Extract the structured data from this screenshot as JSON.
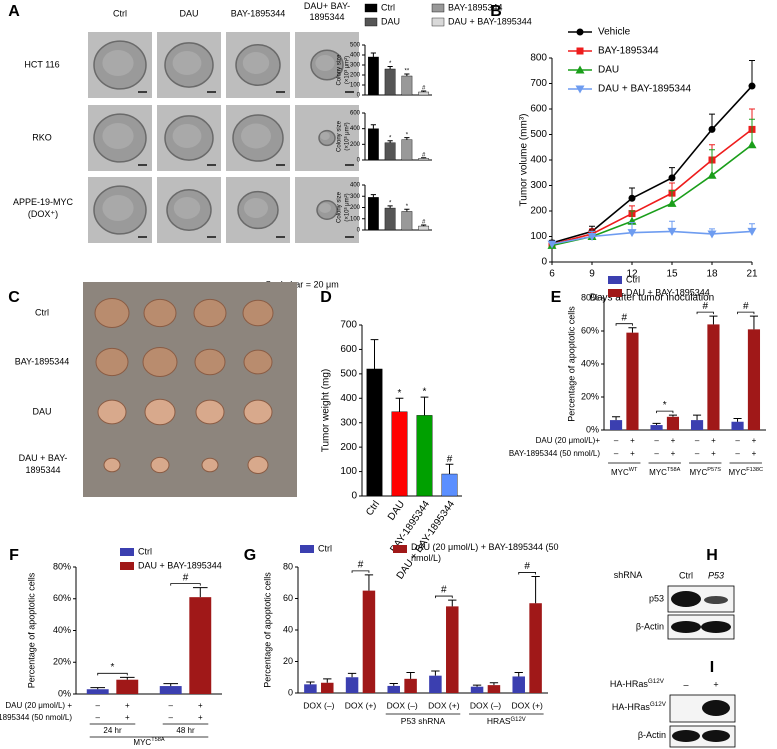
{
  "figure": {
    "panel_labels": [
      "A",
      "B",
      "C",
      "D",
      "E",
      "F",
      "G",
      "H",
      "I"
    ],
    "a": {
      "column_headers": [
        "Ctrl",
        "DAU",
        "BAY-1895344",
        "DAU+ BAY-1895344"
      ],
      "row_labels": [
        "HCT 116",
        "RKO",
        "APPE-19-MYC (DOX⁺)"
      ],
      "scale_bar": "Scale bar = 20 μm"
    },
    "c": {
      "row_labels": [
        "Ctrl",
        "BAY-1895344",
        "DAU",
        "DAU + BAY-1895344"
      ]
    },
    "h": {
      "header": "shRNA",
      "lanes": [
        "Ctrl",
        "P53"
      ],
      "rows": [
        "p53",
        "β-Actin"
      ]
    },
    "i": {
      "header": "HA-HRas",
      "header_sup": "G12V",
      "lanes": [
        "–",
        "+"
      ],
      "rows": [
        "HA-HRas",
        "β-Actin"
      ],
      "row_sups": [
        "G12V",
        null
      ]
    }
  },
  "chart_data": [
    {
      "type": "bar",
      "categories": [
        "Ctrl",
        "DAU",
        "BAY-1895344",
        "DAU + BAY-1895344"
      ],
      "colors": [
        "#000000",
        "#555555",
        "#999999",
        "#d9d9d9"
      ],
      "values": [
        380,
        260,
        190,
        30
      ],
      "errors": [
        40,
        25,
        20,
        10
      ],
      "annotations": [
        null,
        "*",
        "**",
        "#"
      ],
      "y_label": "Colony size",
      "y_unit": "(×10³ μm²)",
      "ylim": [
        0,
        500
      ],
      "yticks": [
        0,
        100,
        200,
        300,
        400,
        500
      ]
    },
    {
      "type": "bar",
      "values": [
        400,
        220,
        260,
        20
      ],
      "errors": [
        50,
        25,
        25,
        8
      ],
      "annotations": [
        null,
        "*",
        "*",
        "#"
      ],
      "y_label": "Colony size",
      "y_unit": "(×10³ μm²)",
      "ylim": [
        0,
        600
      ],
      "yticks": [
        0,
        200,
        400,
        600
      ]
    },
    {
      "type": "bar",
      "values": [
        290,
        195,
        165,
        35
      ],
      "errors": [
        25,
        20,
        20,
        10
      ],
      "annotations": [
        null,
        "*",
        "*",
        "#"
      ],
      "y_label": "Colony size",
      "y_unit": "(×10³ μm²)",
      "ylim": [
        0,
        400
      ],
      "yticks": [
        0,
        100,
        200,
        300,
        400
      ]
    },
    {
      "type": "line",
      "x": [
        6,
        9,
        12,
        15,
        18,
        21
      ],
      "x_label": "Days after tumor inoculation",
      "y_label": "Tumor volume (mm³)",
      "xlim": [
        6,
        21
      ],
      "xticks": [
        6,
        9,
        12,
        15,
        18,
        21
      ],
      "ylim": [
        0,
        800
      ],
      "yticks": [
        0,
        100,
        200,
        300,
        400,
        500,
        600,
        700,
        800
      ],
      "series": [
        {
          "name": "Vehicle",
          "color": "#000000",
          "marker": "circle",
          "values": [
            75,
            120,
            250,
            330,
            520,
            690
          ],
          "errors": [
            10,
            20,
            40,
            40,
            60,
            100
          ]
        },
        {
          "name": "BAY-1895344",
          "color": "#ee1c1c",
          "marker": "square",
          "values": [
            70,
            110,
            190,
            270,
            400,
            520
          ],
          "errors": [
            10,
            20,
            30,
            40,
            60,
            80
          ]
        },
        {
          "name": "DAU",
          "color": "#1a9e1a",
          "marker": "triangle",
          "values": [
            65,
            100,
            160,
            230,
            340,
            460
          ],
          "errors": [
            10,
            20,
            40,
            50,
            100,
            100
          ]
        },
        {
          "name": "DAU + BAY-1895344",
          "color": "#6e9cf0",
          "marker": "triangle-down",
          "values": [
            70,
            100,
            115,
            120,
            110,
            120
          ],
          "errors": [
            10,
            20,
            40,
            40,
            20,
            30
          ]
        }
      ]
    },
    {
      "type": "bar",
      "categories": [
        "Ctrl",
        "DAU",
        "BAY-1895344",
        "DAU + BAY-1895344"
      ],
      "colors": [
        "#000000",
        "#ff0000",
        "#00a000",
        "#5b8fff"
      ],
      "values": [
        520,
        345,
        330,
        90
      ],
      "errors": [
        120,
        55,
        75,
        40
      ],
      "annotations": [
        null,
        "*",
        "*",
        "#"
      ],
      "y_label": "Tumor weight (mg)",
      "ylim": [
        0,
        700
      ],
      "yticks": [
        0,
        100,
        200,
        300,
        400,
        500,
        600,
        700
      ]
    },
    {
      "type": "grouped_bar",
      "category_base": "MYC",
      "categories": [
        "WT",
        "T58A",
        "P57S",
        "F138C"
      ],
      "series": [
        {
          "name": "Ctrl",
          "color": "#3b3fb0",
          "values": [
            6,
            3,
            6,
            5
          ],
          "errors": [
            2,
            1,
            3,
            2
          ]
        },
        {
          "name": "DAU + BAY-1895344",
          "color": "#a01818",
          "values": [
            59,
            8,
            64,
            61
          ],
          "errors": [
            3,
            1,
            5,
            8
          ]
        }
      ],
      "annotations": [
        "#",
        "*",
        "#",
        "#"
      ],
      "y_label": "Percentage of apoptotic cells",
      "ylim": [
        0,
        80
      ],
      "yticks": [
        {
          "value": 0,
          "label": "0%"
        },
        {
          "value": 20,
          "label": "20%"
        },
        {
          "value": 40,
          "label": "40%"
        },
        {
          "value": 60,
          "label": "60%"
        },
        {
          "value": 80,
          "label": "80%"
        }
      ],
      "conditions": [
        {
          "label": "DAU (20 μmol/L)+",
          "signs": [
            "–",
            "+"
          ]
        },
        {
          "label": "BAY-1895344 (50 nmol/L)",
          "signs": [
            "–",
            "+"
          ]
        }
      ]
    },
    {
      "type": "grouped_bar",
      "categories": [
        "24 hr",
        "48 hr"
      ],
      "group_label": "MYC",
      "group_label_sup": "T58A",
      "series": [
        {
          "name": "Ctrl",
          "color": "#3b3fb0",
          "values": [
            3,
            5
          ],
          "errors": [
            1,
            1.5
          ]
        },
        {
          "name": "DAU + BAY-1895344",
          "color": "#a01818",
          "values": [
            9,
            61
          ],
          "errors": [
            1.5,
            6
          ]
        }
      ],
      "annotations": [
        "*",
        "#"
      ],
      "y_label": "Percentage of apoptotic cells",
      "ylim": [
        0,
        80
      ],
      "yticks": [
        {
          "value": 0,
          "label": "0%"
        },
        {
          "value": 20,
          "label": "20%"
        },
        {
          "value": 40,
          "label": "40%"
        },
        {
          "value": 60,
          "label": "60%"
        },
        {
          "value": 80,
          "label": "80%"
        }
      ],
      "conditions": [
        {
          "label": "DAU (20 μmol/L) +",
          "signs": [
            "–",
            "+"
          ]
        },
        {
          "label": "BAY-1895344 (50 nmol/L)",
          "signs": [
            "–",
            "+"
          ]
        }
      ]
    },
    {
      "type": "grouped_bar",
      "categories": [
        "DOX (–)",
        "DOX (+)",
        "DOX (–)",
        "DOX (+)",
        "DOX (–)",
        "DOX (+)"
      ],
      "groups": [
        null,
        "P53 shRNA",
        "HRAS"
      ],
      "group_sups": [
        null,
        null,
        "G12V"
      ],
      "series": [
        {
          "name": "Ctrl",
          "color": "#3b3fb0",
          "values": [
            5.5,
            10,
            4.5,
            11,
            4,
            10.5
          ],
          "errors": [
            1.5,
            2.5,
            1.5,
            3,
            1,
            2.5
          ]
        },
        {
          "name": "DAU (20 μmol/L) + BAY-1895344 (50 nmol/L)",
          "color": "#a01818",
          "values": [
            6.5,
            65,
            9,
            55,
            5,
            57
          ],
          "errors": [
            2.5,
            10,
            4,
            4,
            1.5,
            17
          ]
        }
      ],
      "annotations": [
        null,
        "#",
        null,
        "#",
        null,
        "#"
      ],
      "y_label": "Percentage of apoptotic cells",
      "ylim": [
        0,
        80
      ],
      "yticks": [
        0,
        20,
        40,
        60,
        80
      ]
    }
  ]
}
